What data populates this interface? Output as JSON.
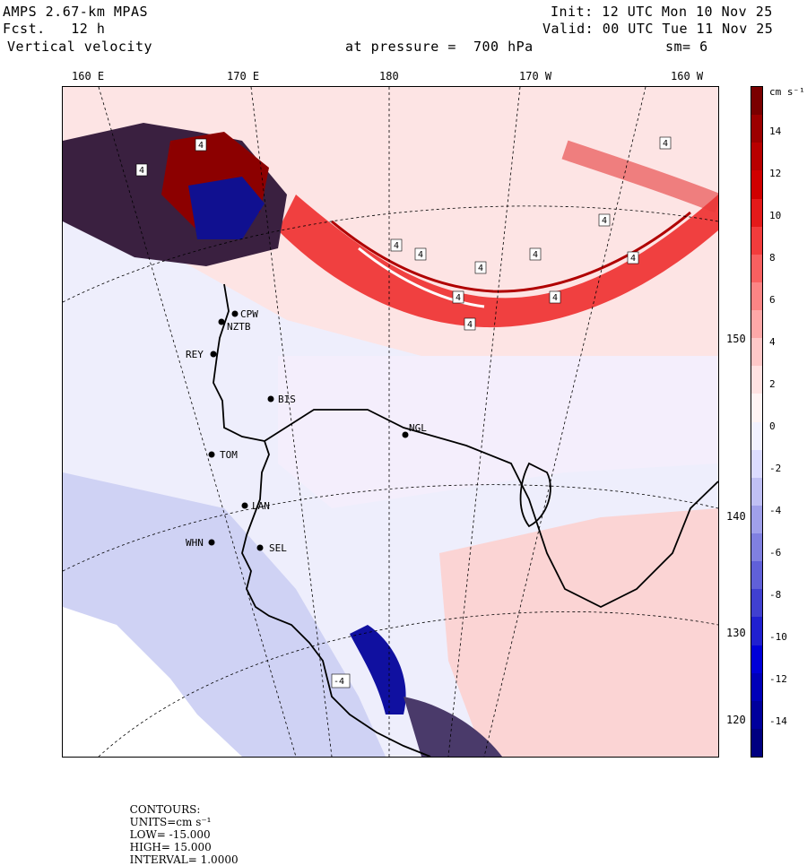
{
  "header": {
    "model": "AMPS 2.67-km MPAS",
    "fcst_label": "Fcst.",
    "fcst_value": "12 h",
    "field": "Vertical velocity",
    "init": "Init: 12 UTC Mon 10 Nov 25",
    "valid": "Valid: 00 UTC Tue 11 Nov 25",
    "pressure_label": "at pressure =",
    "pressure_value": "700 hPa",
    "smoothing": "sm= 6"
  },
  "longitude_ticks": [
    "160 E",
    "170 E",
    "180",
    "170 W",
    "160 W"
  ],
  "longitude_right": [
    "150 W",
    "140 W",
    "130 W",
    "120 W"
  ],
  "stations": [
    "CPW",
    "NZTB",
    "REY",
    "BIS",
    "NGL",
    "TOM",
    "LAN",
    "WHN",
    "SEL"
  ],
  "contour_label": "4",
  "contour_label_neg": "-4",
  "colorbar": {
    "units": "cm s⁻¹",
    "labels": [
      "14",
      "12",
      "10",
      "8",
      "6",
      "4",
      "2",
      "0",
      "-2",
      "-4",
      "-6",
      "-8",
      "-10",
      "-12",
      "-14"
    ],
    "colors": [
      "#7a0000",
      "#9c0000",
      "#b80000",
      "#d00000",
      "#e41a1a",
      "#f23c3c",
      "#f86060",
      "#fb8585",
      "#fda8a8",
      "#fec8c8",
      "#ffe2e2",
      "#fff4f4",
      "#f2f2ff",
      "#dcdcff",
      "#c0c0f4",
      "#a0a0ea",
      "#8080e0",
      "#6060d8",
      "#4040d0",
      "#2020d0",
      "#0000d8",
      "#0000b8",
      "#00009c",
      "#000080"
    ]
  },
  "footer": {
    "contours": "CONTOURS:",
    "units": "UNITS=cm s⁻¹",
    "low": "LOW= -15.000",
    "high": "HIGH= 15.000",
    "interval": "INTERVAL= 1.0000"
  }
}
